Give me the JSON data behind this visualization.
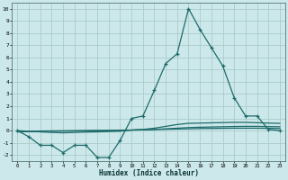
{
  "xlabel": "Humidex (Indice chaleur)",
  "background_color": "#cce8ea",
  "grid_color": "#aacccc",
  "line_color": "#1e6b6b",
  "x": [
    0,
    1,
    2,
    3,
    4,
    5,
    6,
    7,
    8,
    9,
    10,
    11,
    12,
    13,
    14,
    15,
    16,
    17,
    18,
    19,
    20,
    21,
    22,
    23
  ],
  "line1": [
    0.0,
    -0.5,
    -1.2,
    -1.2,
    -1.8,
    -1.2,
    -1.2,
    -2.2,
    -2.2,
    -0.8,
    1.0,
    1.2,
    3.3,
    5.5,
    6.3,
    10.0,
    8.3,
    6.8,
    5.3,
    2.7,
    1.2,
    1.2,
    0.1,
    0.0
  ],
  "line2": [
    0.0,
    -0.05,
    -0.1,
    -0.15,
    -0.18,
    -0.15,
    -0.12,
    -0.1,
    -0.08,
    -0.05,
    0.05,
    0.1,
    0.2,
    0.35,
    0.5,
    0.6,
    0.62,
    0.64,
    0.66,
    0.68,
    0.68,
    0.65,
    0.62,
    0.6
  ],
  "line3": [
    -0.1,
    -0.08,
    -0.06,
    -0.05,
    -0.04,
    -0.03,
    -0.02,
    -0.01,
    0.0,
    0.02,
    0.04,
    0.06,
    0.1,
    0.15,
    0.2,
    0.25,
    0.28,
    0.3,
    0.32,
    0.34,
    0.35,
    0.35,
    0.33,
    0.32
  ],
  "line4": [
    -0.05,
    -0.04,
    -0.03,
    -0.02,
    -0.01,
    0.0,
    0.01,
    0.02,
    0.03,
    0.04,
    0.05,
    0.07,
    0.09,
    0.11,
    0.13,
    0.15,
    0.17,
    0.18,
    0.19,
    0.2,
    0.2,
    0.2,
    0.19,
    0.18
  ],
  "xlim": [
    -0.5,
    23.5
  ],
  "ylim": [
    -2.5,
    10.5
  ],
  "yticks": [
    -2,
    -1,
    0,
    1,
    2,
    3,
    4,
    5,
    6,
    7,
    8,
    9,
    10
  ],
  "xticks": [
    0,
    1,
    2,
    3,
    4,
    5,
    6,
    7,
    8,
    9,
    10,
    11,
    12,
    13,
    14,
    15,
    16,
    17,
    18,
    19,
    20,
    21,
    22,
    23
  ]
}
